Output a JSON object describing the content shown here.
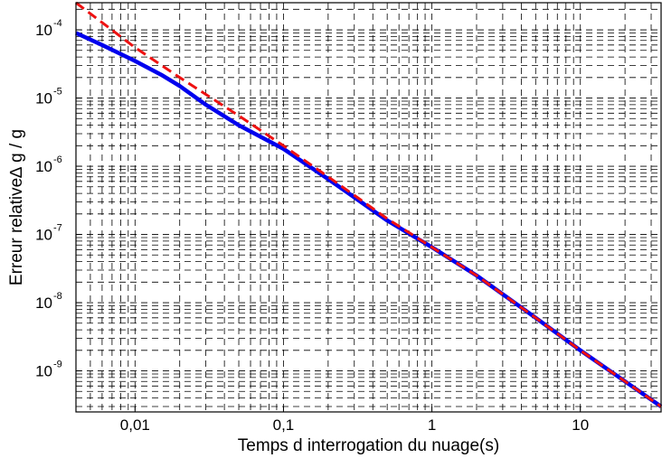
{
  "chart_data": {
    "type": "line",
    "title": "",
    "xlabel": "Temps d interrogation du nuage(s)",
    "ylabel": "Erreur relative∆ g / g",
    "xscale": "log",
    "yscale": "log",
    "xlim": [
      0.004,
      35
    ],
    "ylim": [
      2.5e-10,
      0.00025
    ],
    "grid": true,
    "grid_style": "dashed",
    "x_ticks": [
      {
        "value": 0.01,
        "label": "0,01"
      },
      {
        "value": 0.1,
        "label": "0,1"
      },
      {
        "value": 1,
        "label": "1"
      },
      {
        "value": 10,
        "label": "10"
      }
    ],
    "y_ticks": [
      {
        "value": 1e-09,
        "base": "10",
        "exp": "-9"
      },
      {
        "value": 1e-08,
        "base": "10",
        "exp": "-8"
      },
      {
        "value": 1e-07,
        "base": "10",
        "exp": "-7"
      },
      {
        "value": 1e-06,
        "base": "10",
        "exp": "-6"
      },
      {
        "value": 1e-05,
        "base": "10",
        "exp": "-5"
      },
      {
        "value": 0.0001,
        "base": "10",
        "exp": "-4"
      }
    ],
    "series": [
      {
        "color": "#0000ee",
        "style": "solid",
        "x": [
          0.004,
          0.006,
          0.01,
          0.015,
          0.02,
          0.03,
          0.05,
          0.1,
          0.2,
          0.5,
          1,
          2,
          5,
          10,
          20,
          35
        ],
        "y": [
          9e-05,
          6e-05,
          3.5e-05,
          2.2e-05,
          1.5e-05,
          8e-06,
          4e-06,
          1.8e-06,
          6.5e-07,
          1.6e-07,
          6.5e-08,
          2.5e-08,
          6e-09,
          2e-09,
          7e-10,
          3e-10
        ]
      },
      {
        "color": "#ee1111",
        "style": "dashed",
        "x": [
          0.004,
          0.01,
          0.02,
          0.05,
          0.1,
          0.2,
          0.5,
          1,
          2,
          5,
          10,
          20,
          35
        ],
        "y": [
          0.00025,
          5.5e-05,
          2e-05,
          5.5e-06,
          2e-06,
          7e-07,
          1.7e-07,
          6.5e-08,
          2.5e-08,
          6e-09,
          2e-09,
          7e-10,
          3e-10
        ]
      }
    ]
  }
}
